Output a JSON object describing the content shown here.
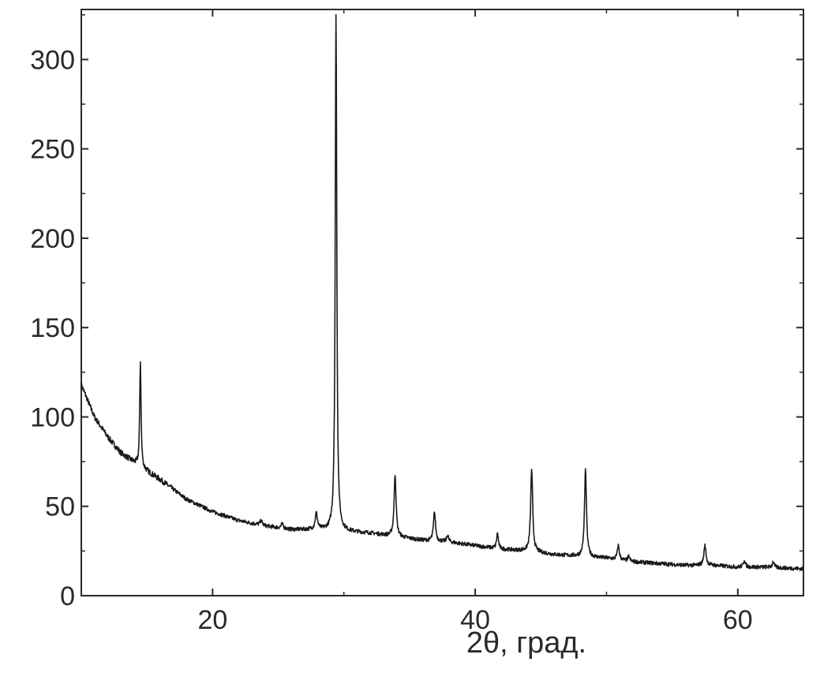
{
  "chart_data": {
    "type": "line",
    "title": "",
    "xlabel": "2θ, град.",
    "ylabel": "",
    "xlim": [
      10,
      65
    ],
    "ylim": [
      0,
      328
    ],
    "x_ticks": [
      20,
      40,
      60
    ],
    "y_ticks": [
      0,
      50,
      100,
      150,
      200,
      250,
      300
    ],
    "grid": false,
    "legend": "none",
    "line_color": "#1a1a1a",
    "series": [
      {
        "baseline": [
          [
            10,
            118
          ],
          [
            11,
            100
          ],
          [
            12,
            89
          ],
          [
            13,
            80
          ],
          [
            14.5,
            72
          ],
          [
            16,
            65
          ],
          [
            18,
            54
          ],
          [
            20,
            47
          ],
          [
            22,
            42
          ],
          [
            24,
            39
          ],
          [
            26,
            37
          ],
          [
            28,
            37
          ],
          [
            30,
            36
          ],
          [
            32,
            35
          ],
          [
            34,
            33
          ],
          [
            36,
            31
          ],
          [
            38,
            30
          ],
          [
            40,
            28
          ],
          [
            42,
            26
          ],
          [
            44,
            25
          ],
          [
            46,
            23
          ],
          [
            48,
            22
          ],
          [
            50,
            21
          ],
          [
            52,
            19
          ],
          [
            54,
            18
          ],
          [
            56,
            17
          ],
          [
            58,
            17
          ],
          [
            60,
            16
          ],
          [
            62,
            16
          ],
          [
            65,
            15
          ]
        ],
        "peaks": [
          {
            "x": 14.5,
            "y": 131,
            "width": 0.06
          },
          {
            "x": 23.7,
            "y": 42,
            "width": 0.1
          },
          {
            "x": 25.3,
            "y": 40,
            "width": 0.1
          },
          {
            "x": 27.9,
            "y": 46,
            "width": 0.1
          },
          {
            "x": 29.4,
            "y": 326,
            "width": 0.07
          },
          {
            "x": 33.9,
            "y": 68,
            "width": 0.09
          },
          {
            "x": 36.9,
            "y": 47,
            "width": 0.09
          },
          {
            "x": 37.9,
            "y": 34,
            "width": 0.08
          },
          {
            "x": 41.7,
            "y": 35,
            "width": 0.08
          },
          {
            "x": 44.3,
            "y": 71,
            "width": 0.09
          },
          {
            "x": 48.4,
            "y": 70,
            "width": 0.09
          },
          {
            "x": 50.9,
            "y": 28,
            "width": 0.09
          },
          {
            "x": 51.7,
            "y": 22,
            "width": 0.08
          },
          {
            "x": 57.5,
            "y": 28,
            "width": 0.1
          },
          {
            "x": 60.5,
            "y": 20,
            "width": 0.09
          },
          {
            "x": 62.7,
            "y": 19,
            "width": 0.09
          }
        ]
      }
    ]
  }
}
